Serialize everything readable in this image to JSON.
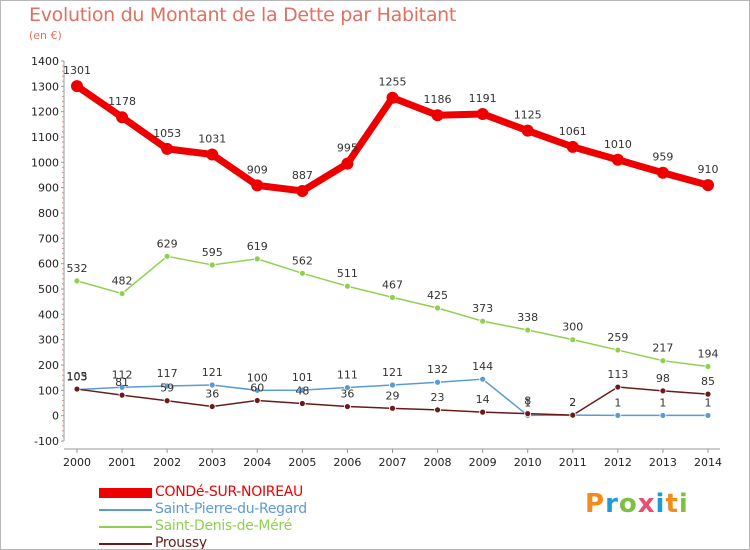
{
  "chart_data": {
    "type": "line",
    "title": "Evolution du Montant de la Dette par Habitant",
    "subtitle": "(en €)",
    "x": [
      "2000",
      "2001",
      "2002",
      "2003",
      "2004",
      "2005",
      "2006",
      "2007",
      "2008",
      "2009",
      "2010",
      "2011",
      "2012",
      "2013",
      "2014"
    ],
    "yticks": [
      "1400",
      "1300",
      "1200",
      "1100",
      "1000",
      "900",
      "800",
      "700",
      "600",
      "500",
      "400",
      "300",
      "200",
      "100",
      "0",
      "-100"
    ],
    "ylim": [
      -100,
      1400
    ],
    "grid": false,
    "legend_position": "bottom-left",
    "series": [
      {
        "name": "CONDé-SUR-NOIREAU",
        "color": "#ee0000",
        "values": [
          1301,
          1178,
          1053,
          1031,
          909,
          887,
          995,
          1255,
          1186,
          1191,
          1125,
          1061,
          1010,
          959,
          910
        ],
        "labels": [
          "1301",
          "1178",
          "1053",
          "1031",
          "909",
          "887",
          "995",
          "1255",
          "1186",
          "1191",
          "1125",
          "1061",
          "1010",
          "959",
          "910"
        ]
      },
      {
        "name": "Saint-Pierre-du-Regard",
        "color": "#5b9bd5",
        "values": [
          103,
          112,
          117,
          121,
          100,
          101,
          111,
          121,
          132,
          144,
          1,
          2,
          1,
          1,
          1
        ],
        "labels": [
          "103",
          "112",
          "117",
          "121",
          "100",
          "101",
          "111",
          "121",
          "132",
          "144",
          "1",
          "2",
          "1",
          "1",
          "1"
        ]
      },
      {
        "name": "Saint-Denis-de-Méré",
        "color": "#8fd14f",
        "values": [
          532,
          482,
          629,
          595,
          619,
          562,
          511,
          467,
          425,
          373,
          338,
          300,
          259,
          217,
          194
        ],
        "labels": [
          "532",
          "482",
          "629",
          "595",
          "619",
          "562",
          "511",
          "467",
          "425",
          "373",
          "338",
          "300",
          "259",
          "217",
          "194"
        ]
      },
      {
        "name": "Proussy",
        "color": "#6b1a1a",
        "values": [
          105,
          81,
          59,
          36,
          60,
          48,
          36,
          29,
          23,
          14,
          8,
          2,
          113,
          98,
          85
        ],
        "labels": [
          "105",
          "81",
          "59",
          "36",
          "60",
          "48",
          "36",
          "29",
          "23",
          "14",
          "8",
          "2",
          "113",
          "98",
          "85"
        ]
      }
    ]
  },
  "brand": {
    "text": "Proxiti",
    "colors": [
      "#f28c1c",
      "#1f9bd7",
      "#7cc242",
      "#e94f6e",
      "#1f9bd7",
      "#f28c1c",
      "#7cc242"
    ]
  }
}
